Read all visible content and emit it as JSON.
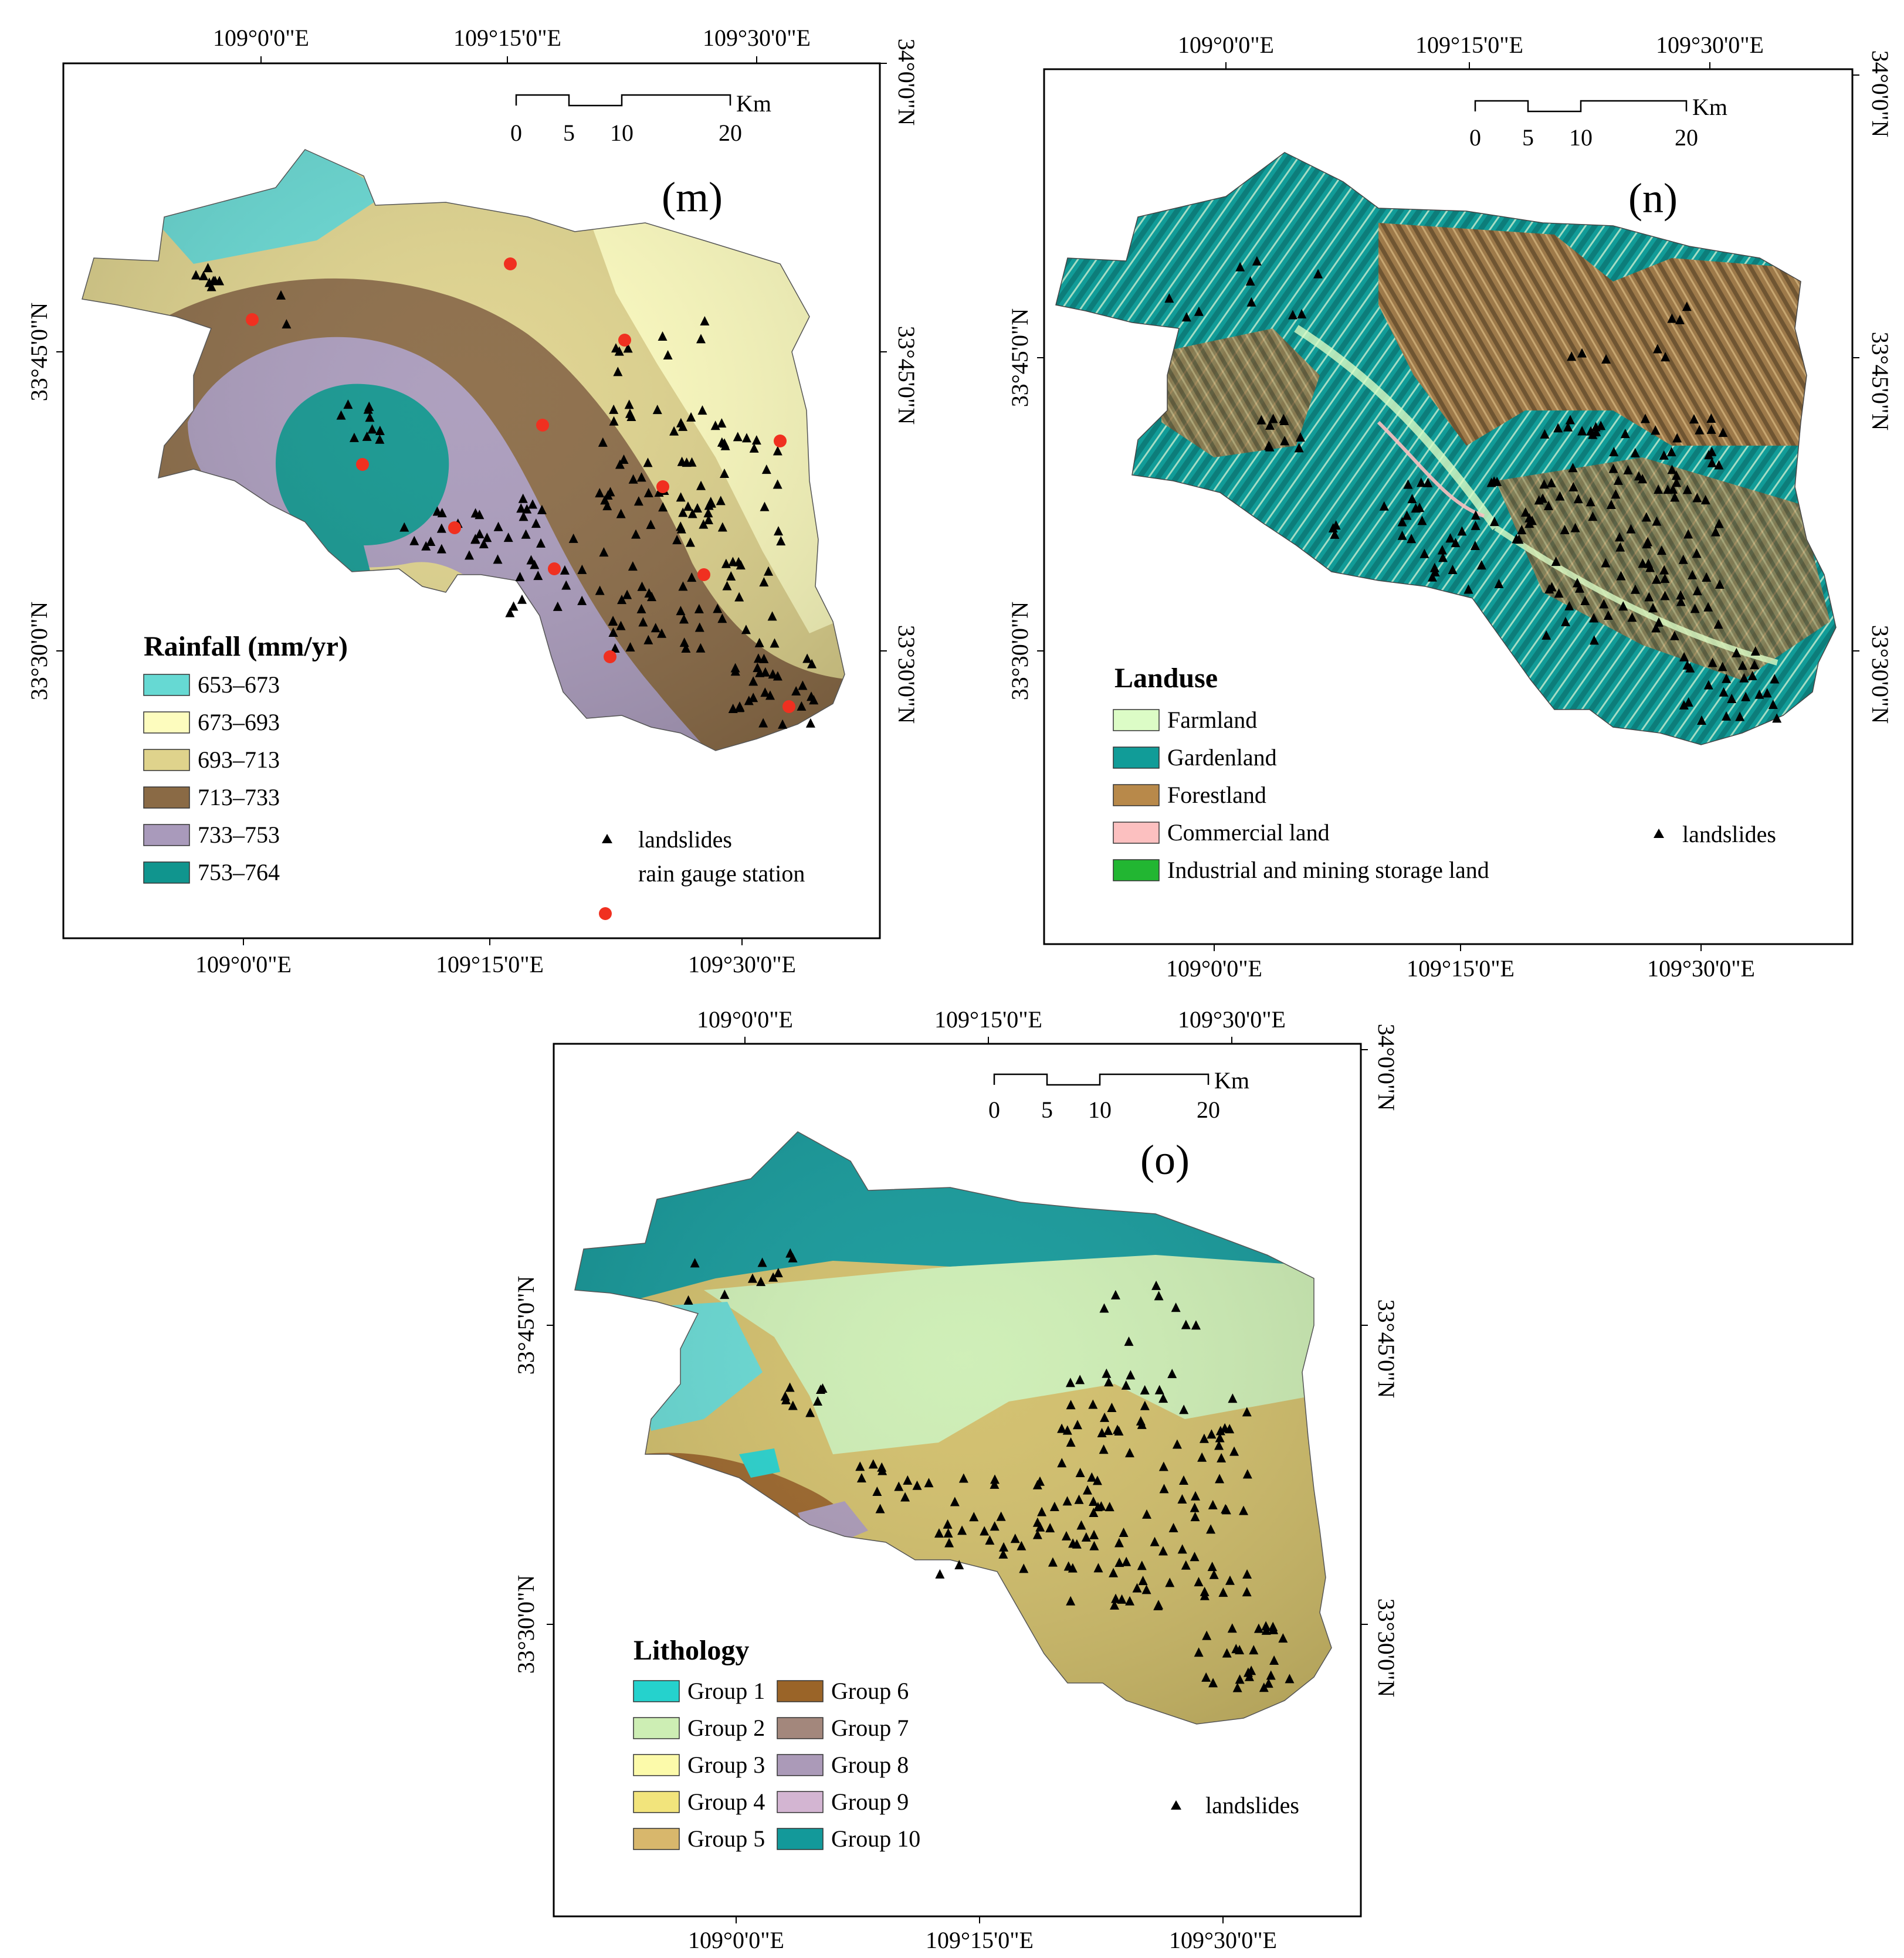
{
  "panels": [
    {
      "id": "m",
      "label": "(m)",
      "top_ticks": [
        "109°0'0\"E",
        "109°15'0\"E",
        "109°30'0\"E"
      ],
      "bottom_ticks": [
        "109°0'0\"E",
        "109°15'0\"E",
        "109°30'0\"E"
      ],
      "left_ticks": [
        "33°45'0\"N",
        "33°30'0\"N"
      ],
      "right_ticks": [
        "34°0'0\"N",
        "33°45'0\"N",
        "33°30'0\"N"
      ],
      "scale": {
        "labels": [
          "0",
          "5",
          "10",
          "20"
        ],
        "unit": "Km"
      },
      "legend": {
        "title": "Rainfall (mm/yr)",
        "items": [
          {
            "label": "653–673",
            "color": "#66d9d3"
          },
          {
            "label": "673–693",
            "color": "#fdfcbe"
          },
          {
            "label": "693–713",
            "color": "#dfd38c"
          },
          {
            "label": "713–733",
            "color": "#8a6a45"
          },
          {
            "label": "733–753",
            "color": "#a99abb"
          },
          {
            "label": "753–764",
            "color": "#10958e"
          }
        ],
        "markers": [
          {
            "label": "landslides",
            "symbol": "triangle",
            "color": "#000000"
          },
          {
            "label": "rain gauge station",
            "symbol": "circle",
            "color": "#f03020"
          }
        ]
      }
    },
    {
      "id": "n",
      "label": "(n)",
      "top_ticks": [
        "109°0'0\"E",
        "109°15'0\"E",
        "109°30'0\"E"
      ],
      "bottom_ticks": [
        "109°0'0\"E",
        "109°15'0\"E",
        "109°30'0\"E"
      ],
      "left_ticks": [
        "33°45'0\"N",
        "33°30'0\"N"
      ],
      "right_ticks": [
        "34°0'0\"N",
        "33°45'0\"N",
        "33°30'0\"N"
      ],
      "scale": {
        "labels": [
          "0",
          "5",
          "10",
          "20"
        ],
        "unit": "Km"
      },
      "legend": {
        "title": "Landuse",
        "items": [
          {
            "label": "Farmland",
            "color": "#dcfcc6"
          },
          {
            "label": "Gardenland",
            "color": "#119c98"
          },
          {
            "label": "Forestland",
            "color": "#b8894a"
          },
          {
            "label": "Commercial land",
            "color": "#fcc0c0"
          },
          {
            "label": "Industrial and mining storage land",
            "color": "#22b632"
          }
        ],
        "markers": [
          {
            "label": "landslides",
            "symbol": "triangle",
            "color": "#000000"
          }
        ]
      }
    },
    {
      "id": "o",
      "label": "(o)",
      "top_ticks": [
        "109°0'0\"E",
        "109°15'0\"E",
        "109°30'0\"E"
      ],
      "bottom_ticks": [
        "109°0'0\"E",
        "109°15'0\"E",
        "109°30'0\"E"
      ],
      "left_ticks": [
        "33°45'0\"N",
        "33°30'0\"N"
      ],
      "right_ticks": [
        "34°0'0\"N",
        "33°45'0\"N",
        "33°30'0\"N"
      ],
      "scale": {
        "labels": [
          "0",
          "5",
          "10",
          "20"
        ],
        "unit": "Km"
      },
      "legend": {
        "title": "Lithology",
        "items": [
          {
            "label": "Group 1",
            "color": "#25d2cd"
          },
          {
            "label": "Group 2",
            "color": "#cdeeb4"
          },
          {
            "label": "Group 3",
            "color": "#fcfaaa"
          },
          {
            "label": "Group 4",
            "color": "#f2e47c"
          },
          {
            "label": "Group 5",
            "color": "#d8b76c"
          },
          {
            "label": "Group 6",
            "color": "#9a6428"
          },
          {
            "label": "Group 7",
            "color": "#a3877c"
          },
          {
            "label": "Group 8",
            "color": "#ab9ab8"
          },
          {
            "label": "Group 9",
            "color": "#d3b5d2"
          },
          {
            "label": "Group 10",
            "color": "#13999a"
          }
        ],
        "markers": [
          {
            "label": "landslides",
            "symbol": "triangle",
            "color": "#000000"
          }
        ]
      }
    }
  ]
}
